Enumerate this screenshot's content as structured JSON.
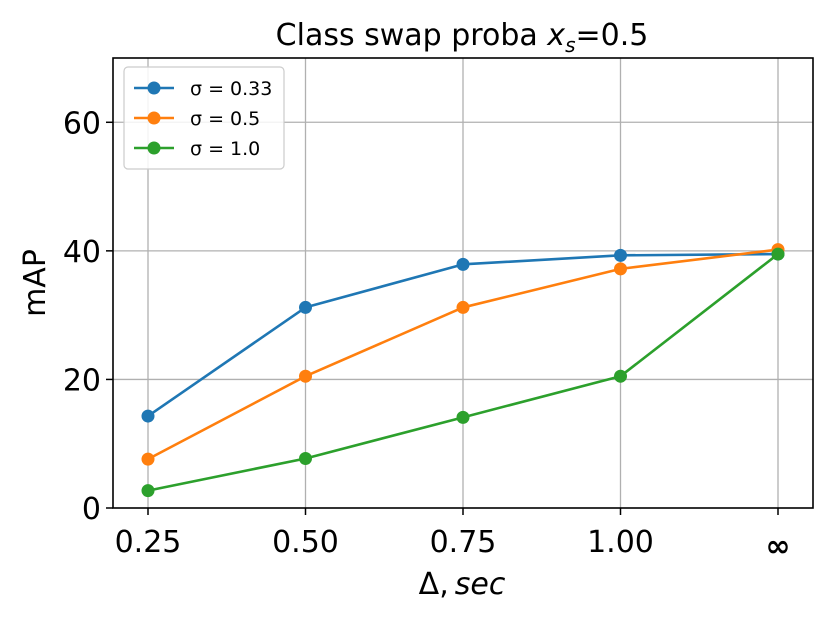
{
  "chart_data": {
    "type": "line",
    "title": "Class swap proba x_s=0.5",
    "title_parts": {
      "prefix": "Class swap proba ",
      "var": "x",
      "sub": "s",
      "suffix": "=0.5"
    },
    "xlabel": "Δ, sec",
    "xlabel_parts": {
      "symbol": "Δ,",
      "unit": "sec"
    },
    "ylabel": "mAP",
    "categories": [
      "0.25",
      "0.50",
      "0.75",
      "1.00",
      "∞"
    ],
    "ylim": [
      0,
      70
    ],
    "yticks": [
      0,
      20,
      40,
      60
    ],
    "grid": true,
    "legend_position": "top-left",
    "series": [
      {
        "name": "σ = 0.33",
        "color": "#1f77b4",
        "values": [
          14.3,
          31.2,
          37.9,
          39.3,
          39.5
        ]
      },
      {
        "name": "σ = 0.5",
        "color": "#ff7f0e",
        "values": [
          7.6,
          20.5,
          31.2,
          37.2,
          40.2
        ]
      },
      {
        "name": "σ = 1.0",
        "color": "#2ca02c",
        "values": [
          2.7,
          7.7,
          14.1,
          20.5,
          39.5
        ]
      }
    ]
  }
}
